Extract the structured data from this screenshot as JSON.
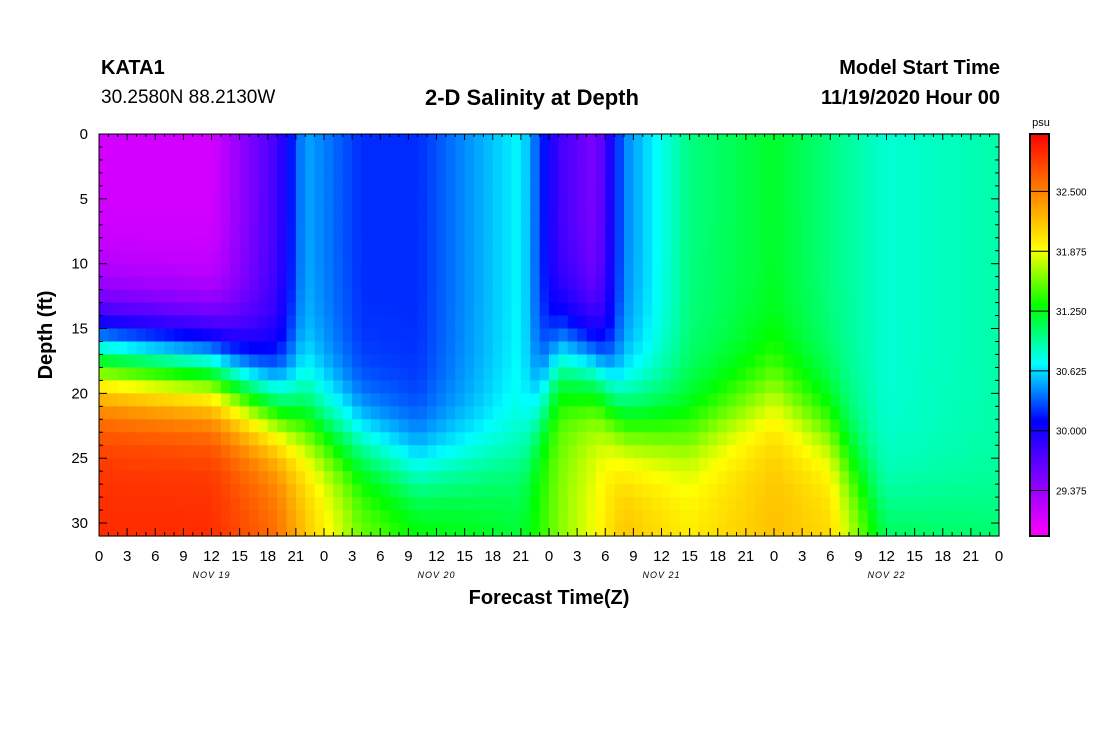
{
  "header": {
    "station": "KATA1",
    "coords": "30.2580N 88.2130W",
    "title": "2-D Salinity at Depth",
    "start_label": "Model Start Time",
    "start_time": "11/19/2020 Hour 00"
  },
  "chart_data": {
    "type": "heatmap",
    "title": "2-D Salinity at Depth",
    "xlabel": "Forecast Time(Z)",
    "ylabel": "Depth (ft)",
    "colorbar_unit": "psu",
    "x_ticks": [
      "0",
      "3",
      "6",
      "9",
      "12",
      "15",
      "18",
      "21",
      "0",
      "3",
      "6",
      "9",
      "12",
      "15",
      "18",
      "21",
      "0",
      "3",
      "6",
      "9",
      "12",
      "15",
      "18",
      "21",
      "0",
      "3",
      "6",
      "9",
      "12",
      "15",
      "18",
      "21",
      "0"
    ],
    "x_range_hours": [
      0,
      96
    ],
    "day_labels": [
      {
        "label": "NOV 19",
        "hour": 12
      },
      {
        "label": "NOV 20",
        "hour": 36
      },
      {
        "label": "NOV 21",
        "hour": 60
      },
      {
        "label": "NOV 22",
        "hour": 84
      }
    ],
    "y_ticks": [
      0,
      5,
      10,
      15,
      20,
      25,
      30
    ],
    "y_range_ft": [
      0,
      31
    ],
    "y_inverted": true,
    "colorbar_ticks": [
      "32.500",
      "31.875",
      "31.250",
      "30.625",
      "30.000",
      "29.375"
    ],
    "colorbar_range": [
      28.9,
      33.1
    ],
    "colormap": [
      "#ff00ff",
      "#8000ff",
      "#0000ff",
      "#00ffff",
      "#00ff00",
      "#ffff00",
      "#ff8000",
      "#ff0000"
    ],
    "grid": false,
    "approx_profile_keyframes": [
      {
        "hour": 0,
        "surface": 29.1,
        "bottom": 32.9,
        "thermocline_ft": 17
      },
      {
        "hour": 12,
        "surface": 29.1,
        "bottom": 32.9,
        "thermocline_ft": 18
      },
      {
        "hour": 19,
        "surface": 29.8,
        "bottom": 32.6,
        "thermocline_ft": 21
      },
      {
        "hour": 22,
        "surface": 30.5,
        "bottom": 32.2,
        "thermocline_ft": 22
      },
      {
        "hour": 28,
        "surface": 30.2,
        "bottom": 31.6,
        "thermocline_ft": 24
      },
      {
        "hour": 34,
        "surface": 30.2,
        "bottom": 31.4,
        "thermocline_ft": 26
      },
      {
        "hour": 45,
        "surface": 30.7,
        "bottom": 31.2,
        "thermocline_ft": 25
      },
      {
        "hour": 49,
        "surface": 29.8,
        "bottom": 31.6,
        "thermocline_ft": 17
      },
      {
        "hour": 53,
        "surface": 29.5,
        "bottom": 31.9,
        "thermocline_ft": 18
      },
      {
        "hour": 56,
        "surface": 30.4,
        "bottom": 32.2,
        "thermocline_ft": 22
      },
      {
        "hour": 63,
        "surface": 31.0,
        "bottom": 32.0,
        "thermocline_ft": 23
      },
      {
        "hour": 72,
        "surface": 31.2,
        "bottom": 32.2,
        "thermocline_ft": 20
      },
      {
        "hour": 78,
        "surface": 31.0,
        "bottom": 32.1,
        "thermocline_ft": 23
      },
      {
        "hour": 84,
        "surface": 30.8,
        "bottom": 31.2,
        "thermocline_ft": 29
      },
      {
        "hour": 96,
        "surface": 30.9,
        "bottom": 31.1,
        "thermocline_ft": 29
      }
    ]
  }
}
